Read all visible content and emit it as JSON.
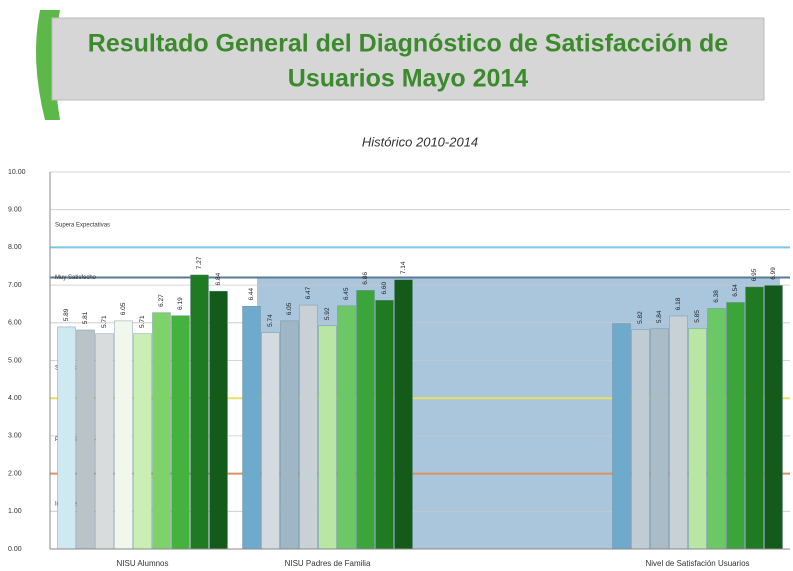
{
  "header": {
    "title_line1": "Resultado General del Diagnóstico de Satisfacción de",
    "title_line2": "Usuarios Mayo 2014"
  },
  "chart_data": {
    "type": "bar",
    "title": "Histórico 2010-2014",
    "categories": [
      "NISU Alumnos",
      "NISU Padres de Familia",
      null,
      "Nivel de Satisfación Usuarios"
    ],
    "series": [
      {
        "colors": [
          "#cfe9f2",
          "#6eaacb",
          null,
          "#6eaacb"
        ],
        "values": [
          5.89,
          6.44,
          null,
          5.98
        ],
        "value_labels": [
          "5.89",
          "6.44",
          null,
          null
        ]
      },
      {
        "colors": [
          "#b9c3c8",
          "#d3dbe0",
          null,
          "#c0ccd3"
        ],
        "values": [
          5.81,
          5.74,
          null,
          5.82
        ],
        "value_labels": [
          "5.81",
          "5.74",
          null,
          "5.82"
        ]
      },
      {
        "colors": [
          "#d8dcdc",
          "#9fb6c4",
          null,
          "#a9bcc8"
        ],
        "values": [
          5.71,
          6.05,
          null,
          5.84
        ],
        "value_labels": [
          "5.71",
          "6.05",
          null,
          "5.84"
        ]
      },
      {
        "colors": [
          "#f2f7ee",
          "#c8d2d6",
          null,
          "#c8d2d6"
        ],
        "values": [
          6.05,
          6.47,
          null,
          6.18
        ],
        "value_labels": [
          "6.05",
          "6.47",
          null,
          "6.18"
        ]
      },
      {
        "colors": [
          "#c9efb4",
          "#b8e6a5",
          null,
          "#b8e6a5"
        ],
        "values": [
          5.71,
          5.92,
          null,
          5.85
        ],
        "value_labels": [
          "5.71",
          "5.92",
          null,
          "5.85"
        ]
      },
      {
        "colors": [
          "#7fd26a",
          "#6cc766",
          null,
          "#6cc766"
        ],
        "values": [
          6.27,
          6.45,
          null,
          6.38
        ],
        "value_labels": [
          "6.27",
          "6.45",
          null,
          "6.38"
        ]
      },
      {
        "colors": [
          "#46b23e",
          "#3ba43a",
          null,
          "#3ba43a"
        ],
        "values": [
          6.19,
          6.86,
          null,
          6.54
        ],
        "value_labels": [
          "6.19",
          "6.86",
          null,
          "6.54"
        ]
      },
      {
        "colors": [
          "#1f7a22",
          "#1f7a22",
          null,
          "#1f7a22"
        ],
        "values": [
          7.27,
          6.6,
          null,
          6.95
        ],
        "value_labels": [
          "7.27",
          "6.60",
          null,
          "6.95"
        ]
      },
      {
        "colors": [
          "#145a18",
          "#145a18",
          null,
          "#145a18"
        ],
        "values": [
          6.84,
          7.14,
          null,
          6.99
        ],
        "value_labels": [
          "6.84",
          "7.14",
          null,
          "6.99"
        ]
      }
    ],
    "ylim": [
      0,
      10
    ],
    "yticks": [
      {
        "value": 0,
        "label": "0.00"
      },
      {
        "value": 1,
        "label": "1.00"
      },
      {
        "value": 2,
        "label": "2.00"
      },
      {
        "value": 3,
        "label": "3.00"
      },
      {
        "value": 4,
        "label": "4.00"
      },
      {
        "value": 5,
        "label": "5.00"
      },
      {
        "value": 6,
        "label": "6.00"
      },
      {
        "value": 7,
        "label": "7.00"
      },
      {
        "value": 8,
        "label": "8.00"
      },
      {
        "value": 9,
        "label": "9.00"
      },
      {
        "value": 10,
        "label": "10.00"
      }
    ],
    "grid": true,
    "reference_lines": [
      {
        "value": 8,
        "color": "#7cc8e8"
      },
      {
        "value": 7.2,
        "color": "#5a7a95"
      },
      {
        "value": 4,
        "color": "#e8e060"
      },
      {
        "value": 2,
        "color": "#e09060"
      }
    ],
    "band_labels": [
      {
        "text": "Supera Expectativas",
        "value": 8.6
      },
      {
        "text": "Muy Satisfecho",
        "value": 7.2
      },
      {
        "text": "Satisfecho",
        "value": 4.8
      },
      {
        "text": "Poco Satisfecho",
        "value": 2.9
      },
      {
        "text": "Insatisfecho",
        "value": 1.2
      }
    ]
  }
}
